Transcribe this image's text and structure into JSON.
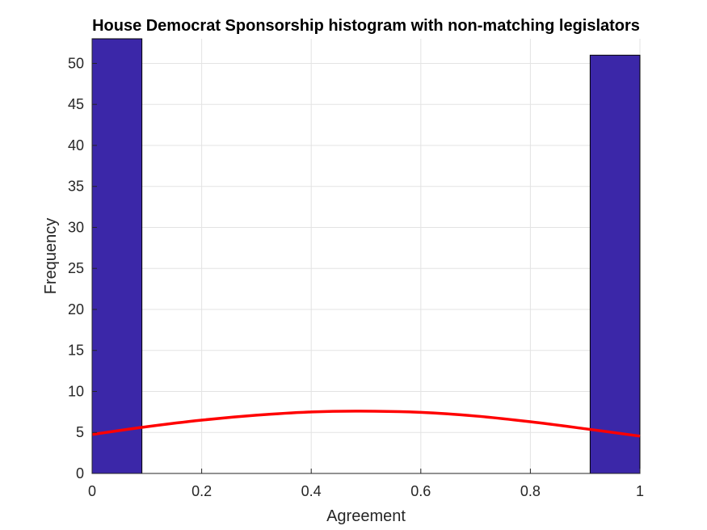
{
  "chart_data": {
    "type": "bar",
    "title": "House Democrat Sponsorship histogram with non-matching legislators",
    "xlabel": "Agreement",
    "ylabel": "Frequency",
    "xlim": [
      0,
      1
    ],
    "ylim": [
      0,
      53
    ],
    "xticks": [
      "0",
      "0.2",
      "0.4",
      "0.6",
      "0.8",
      "1"
    ],
    "xtick_values": [
      0,
      0.2,
      0.4,
      0.6,
      0.8,
      1
    ],
    "yticks": [
      "0",
      "5",
      "10",
      "15",
      "20",
      "25",
      "30",
      "35",
      "40",
      "45",
      "50"
    ],
    "ytick_values": [
      0,
      5,
      10,
      15,
      20,
      25,
      30,
      35,
      40,
      45,
      50
    ],
    "grid": true,
    "bins": [
      {
        "x0": 0.0,
        "x1": 0.0909,
        "value": 53
      },
      {
        "x0": 0.0909,
        "x1": 0.1818,
        "value": 0
      },
      {
        "x0": 0.1818,
        "x1": 0.2727,
        "value": 0
      },
      {
        "x0": 0.2727,
        "x1": 0.3636,
        "value": 0
      },
      {
        "x0": 0.3636,
        "x1": 0.4545,
        "value": 0
      },
      {
        "x0": 0.4545,
        "x1": 0.5455,
        "value": 0
      },
      {
        "x0": 0.5455,
        "x1": 0.6364,
        "value": 0
      },
      {
        "x0": 0.6364,
        "x1": 0.7273,
        "value": 0
      },
      {
        "x0": 0.7273,
        "x1": 0.8182,
        "value": 0
      },
      {
        "x0": 0.8182,
        "x1": 0.9091,
        "value": 0
      },
      {
        "x0": 0.9091,
        "x1": 1.0,
        "value": 51
      }
    ],
    "fit_curve": {
      "type": "line",
      "x": [
        0,
        0.1,
        0.2,
        0.3,
        0.4,
        0.49,
        0.6,
        0.7,
        0.8,
        0.9,
        1.0
      ],
      "y": [
        4.75,
        5.7,
        6.5,
        7.1,
        7.5,
        7.6,
        7.45,
        7.0,
        6.3,
        5.45,
        4.55
      ]
    },
    "colors": {
      "bar_fill": "#3b27a8",
      "bar_edge": "#000000",
      "fit_line": "#ff0000",
      "grid": "#e3e3e3",
      "axis": "#262626"
    }
  }
}
